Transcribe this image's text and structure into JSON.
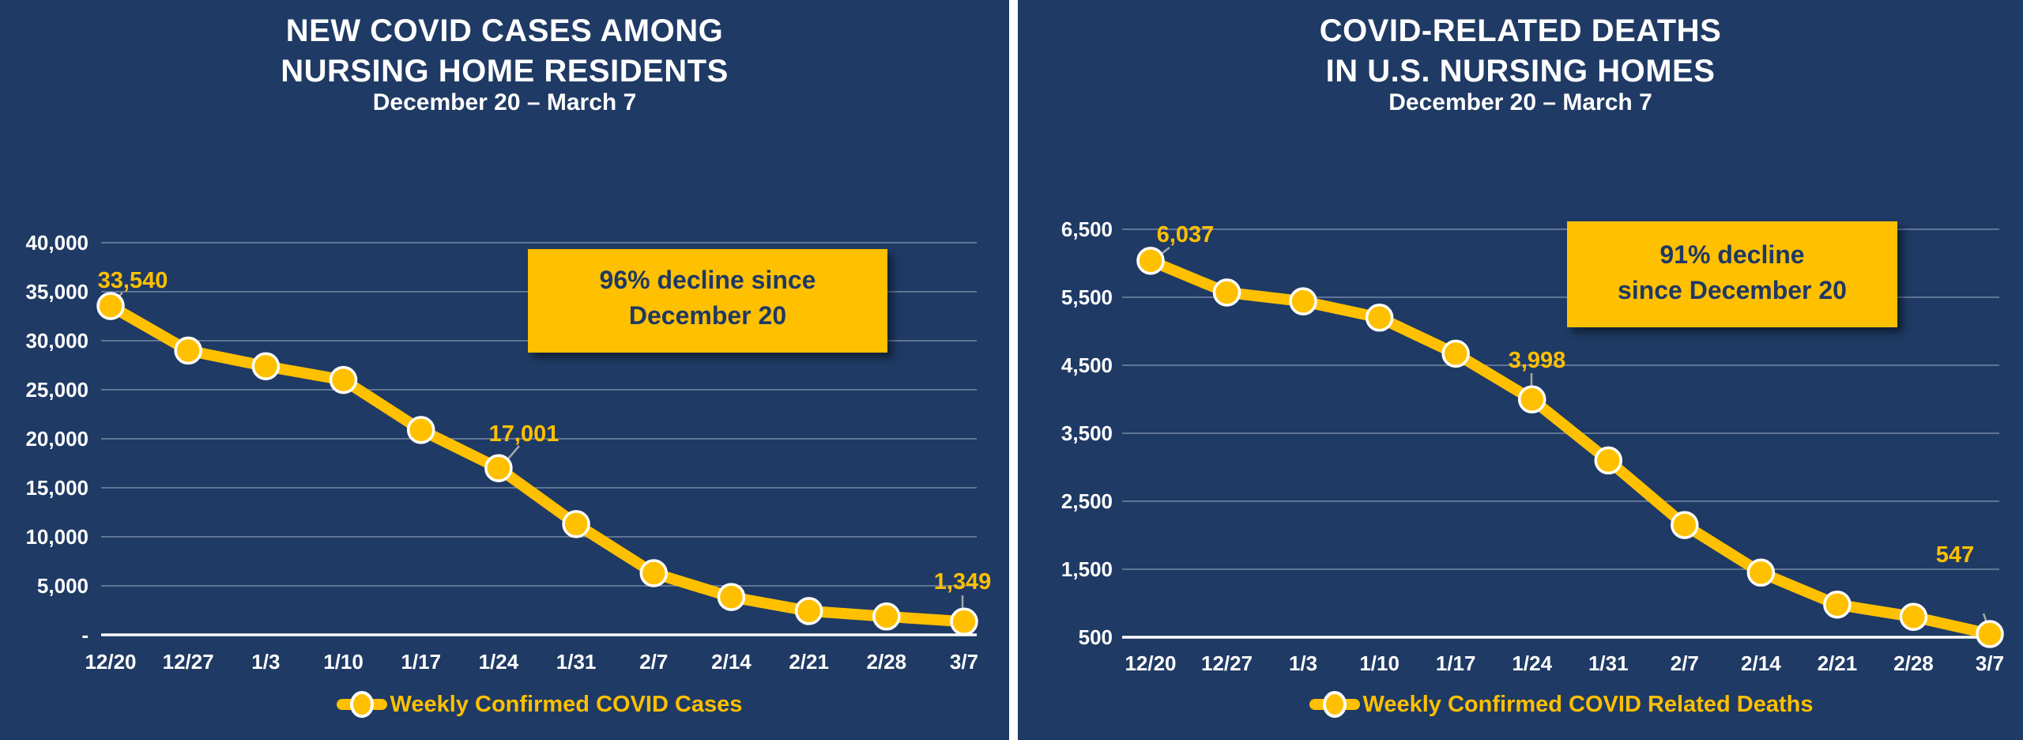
{
  "styles": {
    "background": "#1f3a64",
    "divider": "#ffffff",
    "accent_gold": "#ffc000",
    "title_text": "#ffffff",
    "axis_text": "#ffffff",
    "callout_bg": "#ffc000",
    "callout_text": "#1f3864",
    "leader_line": "#a6a6a6",
    "point_ring": "#ffffff"
  },
  "chart_data": [
    {
      "type": "line",
      "title_lines": [
        "NEW COVID CASES AMONG",
        "NURSING HOME RESIDENTS"
      ],
      "subtitle": "December 20 – March 7",
      "categories": [
        "12/20",
        "12/27",
        "1/3",
        "1/10",
        "1/17",
        "1/24",
        "1/31",
        "2/7",
        "2/14",
        "2/21",
        "2/28",
        "3/7"
      ],
      "series": [
        {
          "name": "Weekly Confirmed COVID Cases",
          "color": "#ffc000",
          "values": [
            33540,
            29000,
            27400,
            26000,
            20900,
            17001,
            11300,
            6290,
            3860,
            2430,
            1870,
            1349
          ]
        }
      ],
      "ylim": [
        0,
        40000
      ],
      "grid": true,
      "legend_position": "bottom",
      "yticks": [
        {
          "label": "40,000",
          "value": 40000
        },
        {
          "label": "35,000",
          "value": 35000
        },
        {
          "label": "30,000",
          "value": 30000
        },
        {
          "label": "25,000",
          "value": 25000
        },
        {
          "label": "20,000",
          "value": 20000
        },
        {
          "label": "15,000",
          "value": 15000
        },
        {
          "label": "10,000",
          "value": 10000
        },
        {
          "label": "5,000",
          "value": 5000
        },
        {
          "label": "-",
          "value": 0
        }
      ],
      "data_labels": [
        {
          "index": 0,
          "text": "33,540"
        },
        {
          "index": 5,
          "text": "17,001"
        },
        {
          "index": 11,
          "text": "1,349"
        }
      ],
      "annotation": {
        "lines": [
          "96% decline since",
          "December 20"
        ]
      }
    },
    {
      "type": "line",
      "title_lines": [
        "COVID-RELATED DEATHS",
        "IN U.S. NURSING HOMES"
      ],
      "subtitle": "December 20 – March 7",
      "categories": [
        "12/20",
        "12/27",
        "1/3",
        "1/10",
        "1/17",
        "1/24",
        "1/31",
        "2/7",
        "2/14",
        "2/21",
        "2/28",
        "3/7"
      ],
      "series": [
        {
          "name": "Weekly Confirmed COVID Related Deaths",
          "color": "#ffc000",
          "values": [
            6037,
            5570,
            5440,
            5200,
            4670,
            3998,
            3100,
            2150,
            1450,
            980,
            800,
            547
          ]
        }
      ],
      "ylim": [
        500,
        6500
      ],
      "grid": true,
      "legend_position": "bottom",
      "yticks": [
        {
          "label": "6,500",
          "value": 6500
        },
        {
          "label": "5,500",
          "value": 5500
        },
        {
          "label": "4,500",
          "value": 4500
        },
        {
          "label": "3,500",
          "value": 3500
        },
        {
          "label": "2,500",
          "value": 2500
        },
        {
          "label": "1,500",
          "value": 1500
        },
        {
          "label": "500",
          "value": 500
        }
      ],
      "data_labels": [
        {
          "index": 0,
          "text": "6,037"
        },
        {
          "index": 5,
          "text": "3,998"
        },
        {
          "index": 11,
          "text": "547"
        }
      ],
      "annotation": {
        "lines": [
          "91% decline",
          "since December 20"
        ]
      }
    }
  ]
}
